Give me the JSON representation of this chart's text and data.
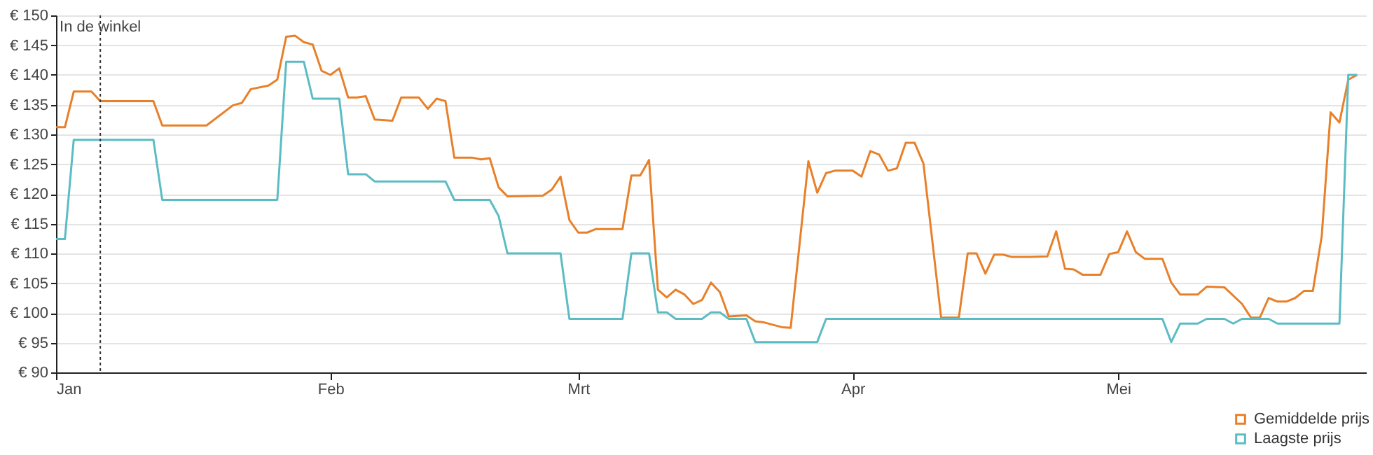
{
  "chart_data": {
    "type": "line",
    "xlim": [
      "--01-01",
      "--05-29"
    ],
    "ylim": [
      90,
      150
    ],
    "xticks": [
      {
        "value": "--01-01",
        "label": "Jan"
      },
      {
        "value": "--02-01",
        "label": "Feb"
      },
      {
        "value": "--03-01",
        "label": "Mrt"
      },
      {
        "value": "--04-01",
        "label": "Apr"
      },
      {
        "value": "--05-01",
        "label": "Mei"
      }
    ],
    "yticks": [
      {
        "value": 90,
        "label": "€ 90"
      },
      {
        "value": 95,
        "label": "€ 95"
      },
      {
        "value": 100,
        "label": "€ 100"
      },
      {
        "value": 105,
        "label": "€ 105"
      },
      {
        "value": 110,
        "label": "€ 110"
      },
      {
        "value": 115,
        "label": "€ 115"
      },
      {
        "value": 120,
        "label": "€ 120"
      },
      {
        "value": 125,
        "label": "€ 125"
      },
      {
        "value": 130,
        "label": "€ 130"
      },
      {
        "value": 135,
        "label": "€ 135"
      },
      {
        "value": 140,
        "label": "€ 140"
      },
      {
        "value": 145,
        "label": "€ 145"
      },
      {
        "value": 150,
        "label": "€ 150"
      }
    ],
    "grid": "y",
    "legend": "bottom right",
    "ref_lines": [
      {
        "axis": "x",
        "value": "--01-06",
        "label": "In de winkel",
        "line_style": "dotted",
        "color": "#333333"
      }
    ],
    "series": [
      {
        "name": "Gemiddelde prijs",
        "color": "#e8802a",
        "x": [
          "--01-01",
          "--01-02",
          "--01-03",
          "--01-05",
          "--01-06",
          "--01-12",
          "--01-13",
          "--01-18",
          "--01-21",
          "--01-22",
          "--01-23",
          "--01-25",
          "--01-26",
          "--01-27",
          "--01-28",
          "--01-29",
          "--01-30",
          "--01-31",
          "--02-01",
          "--02-02",
          "--02-03",
          "--02-04",
          "--02-05",
          "--02-06",
          "--02-08",
          "--02-09",
          "--02-11",
          "--02-12",
          "--02-13",
          "--02-14",
          "--02-15",
          "--02-17",
          "--02-18",
          "--02-19",
          "--02-20",
          "--02-21",
          "--02-25",
          "--02-26",
          "--02-27",
          "--02-28",
          "--03-01",
          "--03-02",
          "--03-03",
          "--03-06",
          "--03-07",
          "--03-08",
          "--03-09",
          "--03-10",
          "--03-11",
          "--03-12",
          "--03-13",
          "--03-14",
          "--03-15",
          "--03-16",
          "--03-17",
          "--03-18",
          "--03-20",
          "--03-21",
          "--03-22",
          "--03-24",
          "--03-25",
          "--03-27",
          "--03-28",
          "--03-29",
          "--03-30",
          "--04-01",
          "--04-02",
          "--04-03",
          "--04-04",
          "--04-05",
          "--04-06",
          "--04-07",
          "--04-08",
          "--04-09",
          "--04-11",
          "--04-13",
          "--04-14",
          "--04-15",
          "--04-16",
          "--04-17",
          "--04-18",
          "--04-19",
          "--04-21",
          "--04-23",
          "--04-24",
          "--04-25",
          "--04-26",
          "--04-27",
          "--04-29",
          "--04-30",
          "--05-01",
          "--05-02",
          "--05-03",
          "--05-04",
          "--05-06",
          "--05-07",
          "--05-08",
          "--05-10",
          "--05-11",
          "--05-13",
          "--05-15",
          "--05-16",
          "--05-17",
          "--05-18",
          "--05-19",
          "--05-20",
          "--05-21",
          "--05-22",
          "--05-23",
          "--05-24",
          "--05-25",
          "--05-26",
          "--05-27",
          "--05-28"
        ],
        "values": [
          131.2,
          131.2,
          137.2,
          137.2,
          135.6,
          135.6,
          131.5,
          131.5,
          134.9,
          135.3,
          137.6,
          138.2,
          139.2,
          146.4,
          146.6,
          145.5,
          145.1,
          140.7,
          140,
          141.1,
          136.2,
          136.2,
          136.4,
          132.5,
          132.3,
          136.2,
          136.2,
          134.3,
          136,
          135.6,
          126.1,
          126.1,
          125.8,
          126,
          121.1,
          119.6,
          119.7,
          120.7,
          122.9,
          115.6,
          113.5,
          113.5,
          114.1,
          114.1,
          123.1,
          123.1,
          125.7,
          103.9,
          102.6,
          103.9,
          103.1,
          101.5,
          102.2,
          105.1,
          103.5,
          99.4,
          99.6,
          98.6,
          98.4,
          97.6,
          97.5,
          125.5,
          120.2,
          123.5,
          123.9,
          123.9,
          122.9,
          127.2,
          126.6,
          123.9,
          124.3,
          128.6,
          128.6,
          125.1,
          99.2,
          99.2,
          110,
          110,
          106.6,
          109.8,
          109.8,
          109.4,
          109.4,
          109.5,
          113.7,
          107.4,
          107.3,
          106.4,
          106.4,
          109.9,
          110.2,
          113.7,
          110.2,
          109.1,
          109.1,
          105.1,
          103.1,
          103.1,
          104.4,
          104.3,
          101.5,
          99.2,
          99.2,
          102.5,
          101.9,
          101.9,
          102.5,
          103.7,
          103.7,
          112.9,
          133.7,
          132,
          139.2,
          140
        ]
      },
      {
        "name": "Laagste prijs",
        "color": "#5bbcc4",
        "x": [
          "--01-01",
          "--01-02",
          "--01-03",
          "--01-12",
          "--01-13",
          "--01-26",
          "--01-27",
          "--01-29",
          "--01-30",
          "--02-02",
          "--02-03",
          "--02-05",
          "--02-06",
          "--02-14",
          "--02-15",
          "--02-19",
          "--02-20",
          "--02-21",
          "--02-27",
          "--02-28",
          "--03-06",
          "--03-07",
          "--03-09",
          "--03-10",
          "--03-11",
          "--03-12",
          "--03-15",
          "--03-16",
          "--03-17",
          "--03-18",
          "--03-20",
          "--03-21",
          "--03-28",
          "--03-29",
          "--05-06",
          "--05-07",
          "--05-08",
          "--05-10",
          "--05-11",
          "--05-13",
          "--05-14",
          "--05-15",
          "--05-18",
          "--05-19",
          "--05-26",
          "--05-27",
          "--05-28"
        ],
        "values": [
          112.4,
          112.4,
          129.1,
          129.1,
          119,
          119,
          142.2,
          142.2,
          136,
          136,
          123.3,
          123.3,
          122.1,
          122.1,
          119,
          119,
          116.3,
          110,
          110,
          99,
          99,
          110,
          110,
          100.1,
          100.1,
          99,
          99,
          100.1,
          100.1,
          99,
          99,
          95.1,
          95.1,
          99,
          99,
          95.1,
          98.2,
          98.2,
          99,
          99,
          98.2,
          99,
          99,
          98.2,
          98.2,
          140,
          140
        ]
      }
    ]
  }
}
